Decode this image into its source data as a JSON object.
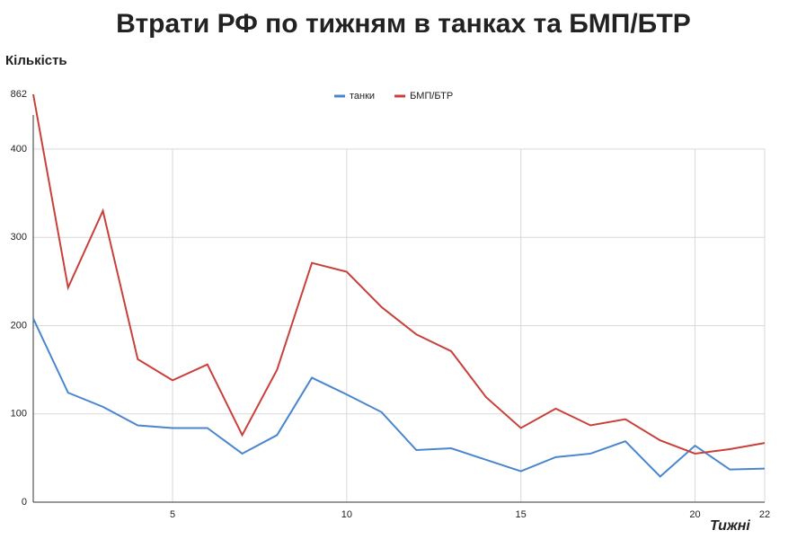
{
  "chart_data": {
    "type": "line",
    "title": "Втрати РФ по тижням в танках та БМП/БТР",
    "y_label": "Кількість",
    "x_label": "Тижні",
    "x": [
      1,
      2,
      3,
      4,
      5,
      6,
      7,
      8,
      9,
      10,
      11,
      12,
      13,
      14,
      15,
      16,
      17,
      18,
      19,
      20,
      21,
      22
    ],
    "series": [
      {
        "name": "танки",
        "color": "#4a86cf",
        "values": [
          208,
          124,
          108,
          87,
          84,
          84,
          55,
          76,
          141,
          122,
          102,
          59,
          61,
          48,
          35,
          51,
          55,
          69,
          29,
          64,
          37,
          38
        ]
      },
      {
        "name": "БМП/БТР",
        "color": "#c9403a",
        "values": [
          862,
          243,
          330,
          162,
          138,
          156,
          76,
          150,
          271,
          261,
          221,
          190,
          171,
          119,
          84,
          106,
          87,
          94,
          70,
          55,
          60,
          67
        ]
      }
    ],
    "xlim": [
      1,
      22
    ],
    "xticks": [
      5,
      10,
      15,
      20,
      22
    ],
    "ylim": [
      0,
      862
    ],
    "yticks": [
      0,
      100,
      200,
      300,
      400,
      862
    ],
    "axis_break": [
      420,
      820
    ],
    "grid": true,
    "legend": "top"
  }
}
